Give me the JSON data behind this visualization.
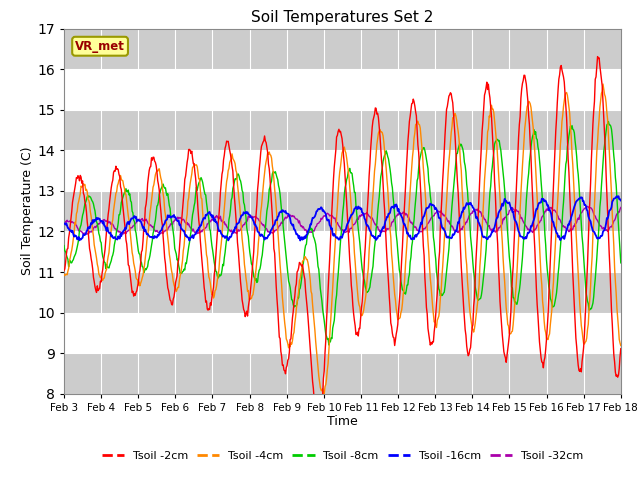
{
  "title": "Soil Temperatures Set 2",
  "xlabel": "Time",
  "ylabel": "Soil Temperature (C)",
  "ylim": [
    8.0,
    17.0
  ],
  "yticks": [
    8.0,
    9.0,
    10.0,
    11.0,
    12.0,
    13.0,
    14.0,
    15.0,
    16.0,
    17.0
  ],
  "date_labels": [
    "Feb 3",
    "Feb 4",
    "Feb 5",
    "Feb 6",
    "Feb 7",
    "Feb 8",
    "Feb 9",
    "Feb 10",
    "Feb 11",
    "Feb 12",
    "Feb 13",
    "Feb 14",
    "Feb 15",
    "Feb 16",
    "Feb 17",
    "Feb 18"
  ],
  "vr_met_label": "VR_met",
  "legend_labels": [
    "Tsoil -2cm",
    "Tsoil -4cm",
    "Tsoil -8cm",
    "Tsoil -16cm",
    "Tsoil -32cm"
  ],
  "colors": {
    "2cm": "#ff0000",
    "4cm": "#ff8800",
    "8cm": "#00cc00",
    "16cm": "#0000ff",
    "32cm": "#aa00aa"
  },
  "bg_color": "#e8e8e8",
  "vr_box_facecolor": "#ffff99",
  "vr_box_edgecolor": "#999900",
  "vr_text_color": "#990000",
  "n_days": 15,
  "n_pts_per_day": 48
}
